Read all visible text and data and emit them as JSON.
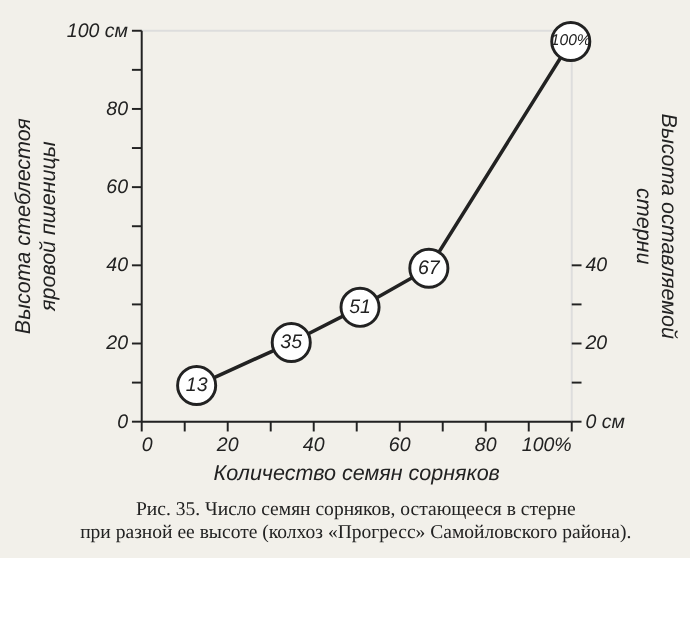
{
  "chart_data": {
    "type": "line",
    "xlabel": "Количество семян сорняков",
    "ylabel": "Высота стеблестоя яровой пшеницы",
    "y2label": "Высота оставляемой стерни",
    "annotations": [
      "Рис. 35. Число семян сорняков, остающееся в стерне при разной ее высоте (колхоз «Прогресс» Самойловского района).",
      {
        "text": "13",
        "x": 13,
        "y": 9
      },
      {
        "text": "35",
        "x": 35,
        "y": 20
      },
      {
        "text": "51",
        "x": 51,
        "y": 29
      },
      {
        "text": "67",
        "x": 67,
        "y": 39
      },
      {
        "text": "100%",
        "x": 100,
        "y": 97
      }
    ],
    "x": [
      13,
      35,
      51,
      67,
      100
    ],
    "series": [
      {
        "color": "#222222",
        "values": [
          9,
          20,
          29,
          39,
          97
        ]
      }
    ],
    "xlim": [
      0,
      100
    ],
    "xticks": [
      0,
      {
        "value": 10,
        "label": null
      },
      20,
      {
        "value": 30,
        "label": null
      },
      40,
      {
        "value": 50,
        "label": null
      },
      60,
      {
        "value": 70,
        "label": null
      },
      80,
      {
        "value": 90,
        "label": null
      },
      {
        "value": 100,
        "label": "100%"
      }
    ],
    "ylim": [
      0,
      100
    ],
    "yticks": [
      0,
      {
        "value": 10,
        "label": null
      },
      20,
      {
        "value": 30,
        "label": null
      },
      40,
      {
        "value": 50,
        "label": null
      },
      60,
      {
        "value": 70,
        "label": null
      },
      80,
      {
        "value": 90,
        "label": null
      },
      {
        "value": 100,
        "label": "100 см"
      }
    ],
    "y2lim": [
      0,
      100
    ],
    "y2ticks": [
      {
        "value": 0,
        "label": "0 см"
      },
      {
        "value": 10,
        "label": null
      },
      20,
      {
        "value": 30,
        "label": null
      },
      40
    ],
    "grid": false,
    "marker": "circle",
    "line_style": "solid"
  }
}
